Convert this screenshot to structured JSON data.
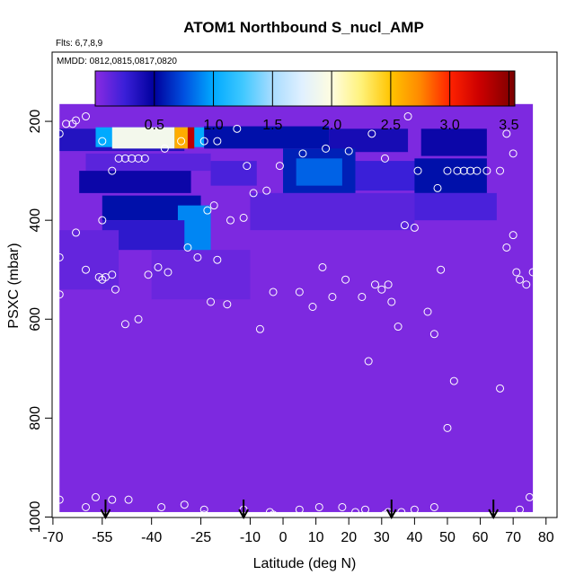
{
  "chart_data": {
    "type": "heatmap",
    "title": "ATOM1 Northbound S_nucl_AMP",
    "annotations": [
      "Flts: 6,7,8,9",
      "MMDD: 0812,0815,0817,0820"
    ],
    "xlabel": "Latitude (deg N)",
    "ylabel": "PSXC (mbar)",
    "xlim": [
      -70,
      83
    ],
    "ylim": [
      1000,
      50
    ],
    "y_reversed": true,
    "x_ticks": [
      -70,
      -55,
      -40,
      -25,
      -10,
      0,
      10,
      20,
      30,
      40,
      50,
      60,
      70,
      80
    ],
    "x_tick_labels": [
      "-70",
      "-55",
      "-40",
      "-25",
      "-10",
      "0",
      "10",
      "20",
      "30",
      "40",
      "50",
      "60",
      "70",
      "80"
    ],
    "y_ticks": [
      200,
      400,
      600,
      800,
      1000
    ],
    "y_tick_labels": [
      "200",
      "400",
      "600",
      "800",
      "1000"
    ],
    "colorbar": {
      "range": [
        0,
        3.55
      ],
      "ticks": [
        0.5,
        1.0,
        1.5,
        2.0,
        2.5,
        3.0,
        3.5
      ],
      "tick_labels": [
        "0.5",
        "1.0",
        "1.5",
        "2.0",
        "2.5",
        "3.0",
        "3.5"
      ],
      "stops": [
        {
          "v": 0.0,
          "color": "#8a2be2"
        },
        {
          "v": 0.25,
          "color": "#3a1fd8"
        },
        {
          "v": 0.5,
          "color": "#00009c"
        },
        {
          "v": 0.75,
          "color": "#0050e0"
        },
        {
          "v": 1.0,
          "color": "#00aaff"
        },
        {
          "v": 1.25,
          "color": "#40c8ff"
        },
        {
          "v": 1.5,
          "color": "#a8dcff"
        },
        {
          "v": 1.75,
          "color": "#e0f0ff"
        },
        {
          "v": 2.0,
          "color": "#fffde0"
        },
        {
          "v": 2.25,
          "color": "#fff27a"
        },
        {
          "v": 2.5,
          "color": "#ffc400"
        },
        {
          "v": 2.75,
          "color": "#ff8800"
        },
        {
          "v": 3.0,
          "color": "#ff2200"
        },
        {
          "v": 3.25,
          "color": "#cc0000"
        },
        {
          "v": 3.55,
          "color": "#7a0000"
        }
      ]
    },
    "background_value": 0.05,
    "field_blocks": [
      {
        "x": [
          -68,
          76
        ],
        "p": [
          165,
          990
        ],
        "v": 0.04
      },
      {
        "x": [
          -68,
          -30
        ],
        "p": [
          215,
          260
        ],
        "v": 0.35
      },
      {
        "x": [
          -57,
          -24
        ],
        "p": [
          212,
          252
        ],
        "v": 1.0
      },
      {
        "x": [
          -52,
          -33
        ],
        "p": [
          212,
          255
        ],
        "v": 1.9
      },
      {
        "x": [
          -33,
          -29
        ],
        "p": [
          212,
          255
        ],
        "v": 2.6
      },
      {
        "x": [
          -29,
          -27
        ],
        "p": [
          212,
          255
        ],
        "v": 3.3
      },
      {
        "x": [
          -24,
          14
        ],
        "p": [
          210,
          255
        ],
        "v": 0.55
      },
      {
        "x": [
          14,
          38
        ],
        "p": [
          215,
          262
        ],
        "v": 0.4
      },
      {
        "x": [
          42,
          62
        ],
        "p": [
          215,
          270
        ],
        "v": 0.45
      },
      {
        "x": [
          -60,
          -22
        ],
        "p": [
          265,
          300
        ],
        "v": 0.15
      },
      {
        "x": [
          -62,
          -28
        ],
        "p": [
          300,
          345
        ],
        "v": 0.45
      },
      {
        "x": [
          -22,
          -8
        ],
        "p": [
          280,
          330
        ],
        "v": 0.2
      },
      {
        "x": [
          0,
          22
        ],
        "p": [
          255,
          345
        ],
        "v": 0.6
      },
      {
        "x": [
          4,
          18
        ],
        "p": [
          275,
          330
        ],
        "v": 0.8
      },
      {
        "x": [
          22,
          42
        ],
        "p": [
          280,
          340
        ],
        "v": 0.25
      },
      {
        "x": [
          40,
          62
        ],
        "p": [
          275,
          345
        ],
        "v": 0.55
      },
      {
        "x": [
          -55,
          -25
        ],
        "p": [
          350,
          400
        ],
        "v": 0.55
      },
      {
        "x": [
          -32,
          -22
        ],
        "p": [
          370,
          470
        ],
        "v": 0.9
      },
      {
        "x": [
          -55,
          -30
        ],
        "p": [
          400,
          460
        ],
        "v": 0.3
      },
      {
        "x": [
          -10,
          40
        ],
        "p": [
          345,
          420
        ],
        "v": 0.15
      },
      {
        "x": [
          40,
          65
        ],
        "p": [
          345,
          400
        ],
        "v": 0.2
      },
      {
        "x": [
          -68,
          -50
        ],
        "p": [
          420,
          540
        ],
        "v": 0.12
      },
      {
        "x": [
          -40,
          -10
        ],
        "p": [
          460,
          560
        ],
        "v": 0.1
      }
    ],
    "obs_points": [
      [
        -68,
        225
      ],
      [
        -66,
        205
      ],
      [
        -64,
        205
      ],
      [
        -63,
        198
      ],
      [
        -60,
        190
      ],
      [
        -55,
        240
      ],
      [
        -52,
        300
      ],
      [
        -50,
        275
      ],
      [
        -48,
        275
      ],
      [
        -46,
        275
      ],
      [
        -44,
        275
      ],
      [
        -42,
        275
      ],
      [
        -36,
        255
      ],
      [
        -31,
        240
      ],
      [
        -24,
        240
      ],
      [
        -20,
        240
      ],
      [
        -14,
        215
      ],
      [
        -11,
        290
      ],
      [
        -1,
        290
      ],
      [
        6,
        265
      ],
      [
        13,
        255
      ],
      [
        20,
        260
      ],
      [
        27,
        225
      ],
      [
        31,
        275
      ],
      [
        38,
        190
      ],
      [
        41,
        300
      ],
      [
        47,
        335
      ],
      [
        50,
        300
      ],
      [
        53,
        300
      ],
      [
        55,
        300
      ],
      [
        57,
        300
      ],
      [
        59,
        300
      ],
      [
        62,
        300
      ],
      [
        66,
        300
      ],
      [
        68,
        225
      ],
      [
        70,
        265
      ],
      [
        -63,
        425
      ],
      [
        -55,
        400
      ],
      [
        -52,
        510
      ],
      [
        -54,
        515
      ],
      [
        -56,
        515
      ],
      [
        -60,
        500
      ],
      [
        -68,
        475
      ],
      [
        -41,
        510
      ],
      [
        -38,
        495
      ],
      [
        -35,
        505
      ],
      [
        -29,
        455
      ],
      [
        -26,
        475
      ],
      [
        -20,
        480
      ],
      [
        -23,
        380
      ],
      [
        -21,
        370
      ],
      [
        -16,
        400
      ],
      [
        -12,
        395
      ],
      [
        -9,
        345
      ],
      [
        -5,
        340
      ],
      [
        5,
        545
      ],
      [
        9,
        575
      ],
      [
        12,
        495
      ],
      [
        15,
        555
      ],
      [
        19,
        520
      ],
      [
        -22,
        565
      ],
      [
        -17,
        570
      ],
      [
        -3,
        545
      ],
      [
        -7,
        620
      ],
      [
        24,
        555
      ],
      [
        26,
        685
      ],
      [
        28,
        530
      ],
      [
        30,
        540
      ],
      [
        32,
        530
      ],
      [
        33,
        565
      ],
      [
        35,
        615
      ],
      [
        37,
        410
      ],
      [
        40,
        415
      ],
      [
        44,
        585
      ],
      [
        46,
        630
      ],
      [
        48,
        500
      ],
      [
        50,
        820
      ],
      [
        52,
        725
      ],
      [
        68,
        455
      ],
      [
        70,
        430
      ],
      [
        71,
        505
      ],
      [
        72,
        520
      ],
      [
        74,
        530
      ],
      [
        76,
        505
      ],
      [
        78,
        780
      ],
      [
        79,
        930
      ],
      [
        80,
        450
      ],
      [
        81,
        460
      ],
      [
        -68,
        550
      ],
      [
        -55,
        520
      ],
      [
        -51,
        540
      ],
      [
        -48,
        610
      ],
      [
        -44,
        600
      ],
      [
        -68,
        965
      ],
      [
        -60,
        980
      ],
      [
        -57,
        960
      ],
      [
        -52,
        965
      ],
      [
        -47,
        965
      ],
      [
        -37,
        980
      ],
      [
        -30,
        975
      ],
      [
        -24,
        985
      ],
      [
        -12,
        985
      ],
      [
        -4,
        990
      ],
      [
        5,
        985
      ],
      [
        11,
        980
      ],
      [
        18,
        980
      ],
      [
        25,
        985
      ],
      [
        32,
        990
      ],
      [
        36,
        990
      ],
      [
        40,
        985
      ],
      [
        46,
        980
      ],
      [
        66,
        740
      ],
      [
        72,
        985
      ],
      [
        75,
        960
      ],
      [
        78,
        930
      ],
      [
        81,
        910
      ],
      [
        -24,
        995
      ],
      [
        -3,
        995
      ],
      [
        22,
        990
      ],
      [
        31,
        995
      ]
    ],
    "flight_markers_lat": [
      -54,
      -12,
      33,
      64
    ]
  }
}
